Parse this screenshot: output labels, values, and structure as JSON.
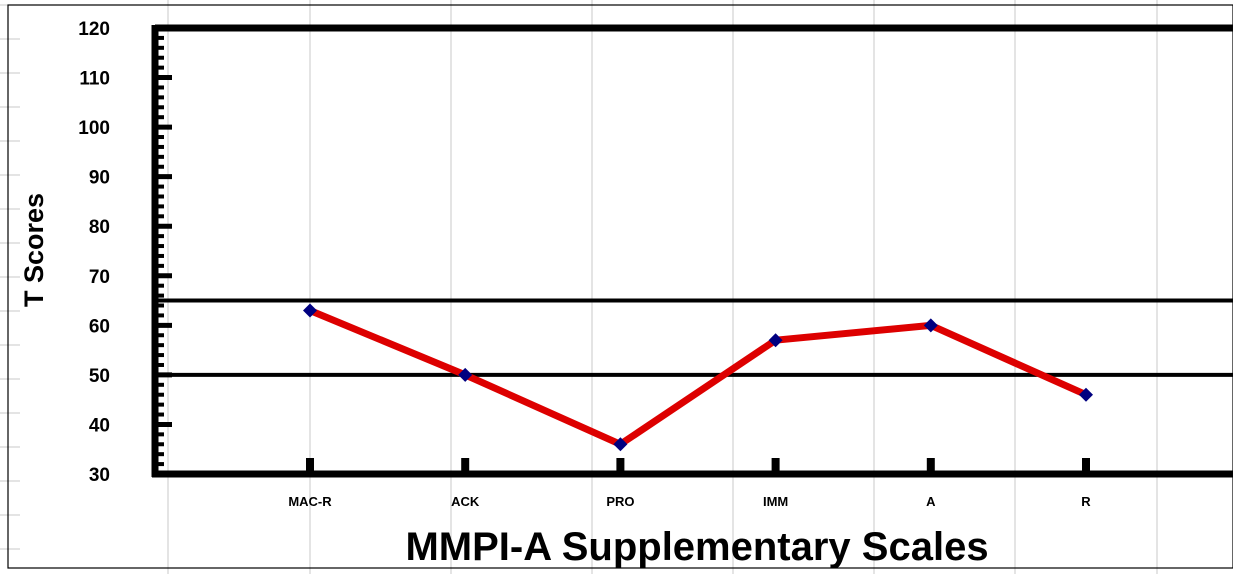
{
  "chart_data": {
    "type": "line",
    "title": "",
    "xlabel": "MMPI-A Supplementary Scales",
    "ylabel": "T Scores",
    "categories": [
      "MAC-R",
      "ACK",
      "PRO",
      "IMM",
      "A",
      "R"
    ],
    "series": [
      {
        "values": [
          63,
          50,
          36,
          57,
          60,
          46
        ]
      }
    ],
    "ylim": [
      30,
      120
    ],
    "yticks": [
      30,
      40,
      50,
      60,
      70,
      80,
      90,
      100,
      110,
      120
    ],
    "reference_lines": [
      50,
      65
    ],
    "grid": false,
    "legend": "none",
    "colors": {
      "line": "#dd0000",
      "marker": "#000080",
      "axis": "#000000",
      "spreadsheet_grid": "#c8c8c8"
    }
  }
}
